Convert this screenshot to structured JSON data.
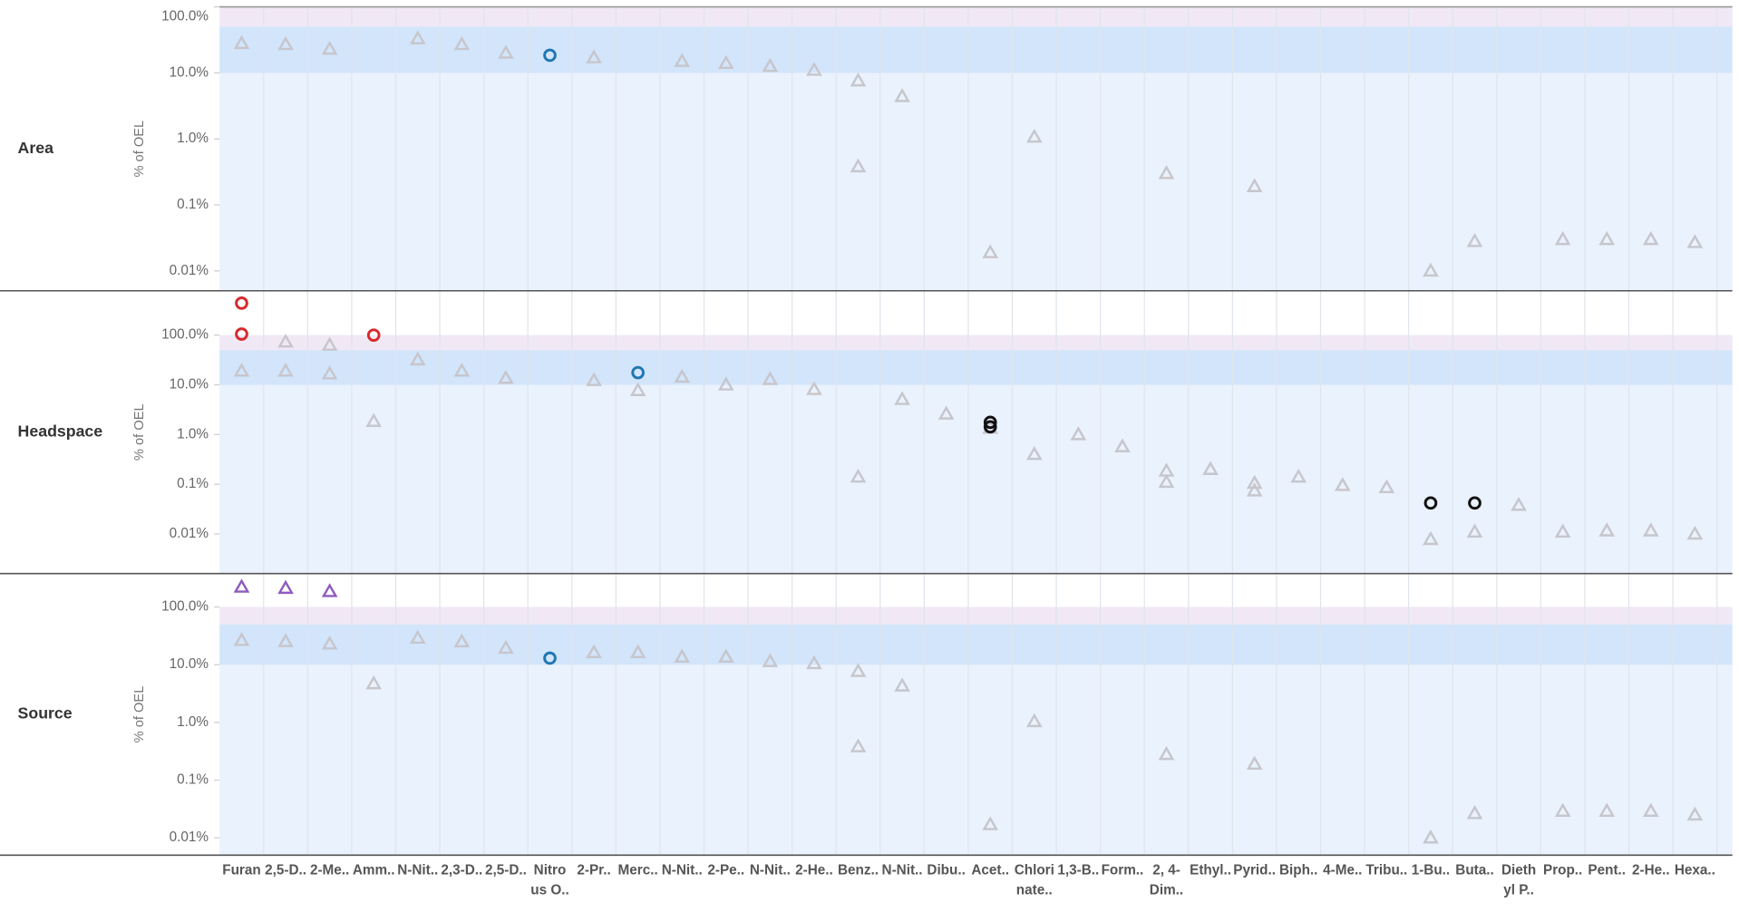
{
  "chart_data": {
    "type": "strip",
    "categories": [
      "Furan",
      "2,5-D..",
      "2-Me..",
      "Amm..",
      "N-Nit..",
      "2,3-D..",
      "2,5-D..",
      "Nitro\nus O..",
      "2-Pr..",
      "Merc..",
      "N-Nit..",
      "2-Pe..",
      "N-Nit..",
      "2-He..",
      "Benz..",
      "N-Nit..",
      "Dibu..",
      "Acet..",
      "Chlori\nnate..",
      "1,3-B..",
      "Form..",
      "2, 4-\nDim..",
      "Ethyl..",
      "Pyrid..",
      "Biph..",
      "4-Me..",
      "Tribu..",
      "1-Bu..",
      "Buta..",
      "Dieth\nyl P..",
      "Prop..",
      "Pent..",
      "2-He..",
      "Hexa.."
    ],
    "log_scale": true,
    "background": "#eaf2fd",
    "bands": [
      {
        "from": 10,
        "to": 50,
        "color": "#d3e5fb"
      },
      {
        "from": 50,
        "to": 100,
        "color": "#f1e8f5"
      }
    ],
    "panels": [
      {
        "label": "Area",
        "ylabel": "% of OEL",
        "ylim": [
          0.005,
          100
        ],
        "yticks": [
          {
            "value": 100,
            "label": "100.0%"
          },
          {
            "value": 10,
            "label": "10.0%"
          },
          {
            "value": 1,
            "label": "1.0%"
          },
          {
            "value": 0.1,
            "label": "0.1%"
          },
          {
            "value": 0.01,
            "label": "0.01%"
          }
        ],
        "marks": [
          {
            "shape": "triangle",
            "color": "#c6c6cc",
            "values": [
              28,
              27,
              23,
              null,
              33,
              27,
              20,
              null,
              17,
              null,
              15,
              14,
              12.6,
              11,
              7.6,
              4.4,
              null,
              0.019,
              1.07,
              null,
              null,
              0.3,
              null,
              0.19,
              null,
              null,
              null,
              0.01,
              0.028,
              null,
              0.03,
              0.03,
              0.03,
              0.027
            ]
          },
          {
            "shape": "triangle",
            "color": "#c6c6cc",
            "values": [
              null,
              null,
              null,
              null,
              null,
              null,
              null,
              null,
              null,
              null,
              null,
              null,
              null,
              null,
              0.38,
              null,
              null,
              null,
              null,
              null,
              null,
              null,
              null,
              null,
              null,
              null,
              null,
              null,
              null,
              null,
              null,
              null,
              null,
              null
            ]
          },
          {
            "shape": "circle",
            "color": "#1f77b0",
            "values": [
              null,
              null,
              null,
              null,
              null,
              null,
              null,
              18.5,
              null,
              null,
              null,
              null,
              null,
              null,
              null,
              null,
              null,
              null,
              null,
              null,
              null,
              null,
              null,
              null,
              null,
              null,
              null,
              null,
              null,
              null,
              null,
              null,
              null,
              null
            ]
          }
        ]
      },
      {
        "label": "Headspace",
        "ylabel": "% of OEL",
        "ylim": [
          0.0016,
          780
        ],
        "yticks": [
          {
            "value": 100,
            "label": "100.0%"
          },
          {
            "value": 10,
            "label": "10.0%"
          },
          {
            "value": 1,
            "label": "1.0%"
          },
          {
            "value": 0.1,
            "label": "0.1%"
          },
          {
            "value": 0.01,
            "label": "0.01%"
          }
        ],
        "marks": [
          {
            "shape": "triangle",
            "color": "#c6c6cc",
            "values": [
              19,
              73,
              63,
              1.85,
              32,
              19,
              13.6,
              null,
              12.3,
              7.7,
              14.3,
              10,
              12.9,
              8.1,
              0.14,
              5.1,
              2.6,
              1.35,
              0.4,
              1.0,
              0.57,
              0.185,
              0.2,
              0.105,
              0.14,
              0.095,
              0.086,
              0.0078,
              0.011,
              0.038,
              0.011,
              0.0116,
              0.0116,
              0.01
            ]
          },
          {
            "shape": "triangle",
            "color": "#c6c6cc",
            "values": [
              null,
              19,
              16.7,
              null,
              null,
              null,
              null,
              null,
              null,
              null,
              null,
              null,
              null,
              null,
              null,
              null,
              null,
              null,
              null,
              null,
              null,
              0.11,
              null,
              0.074,
              null,
              null,
              null,
              null,
              null,
              null,
              null,
              null,
              null,
              null
            ]
          },
          {
            "shape": "circle",
            "color": "#d62a2e",
            "values": [
              440,
              null,
              null,
              100,
              null,
              null,
              null,
              null,
              null,
              null,
              null,
              null,
              null,
              null,
              null,
              null,
              null,
              null,
              null,
              null,
              null,
              null,
              null,
              null,
              null,
              null,
              null,
              null,
              null,
              null,
              null,
              null,
              null,
              null
            ]
          },
          {
            "shape": "circle",
            "color": "#d62a2e",
            "values": [
              105,
              null,
              null,
              null,
              null,
              null,
              null,
              null,
              null,
              null,
              null,
              null,
              null,
              null,
              null,
              null,
              null,
              null,
              null,
              null,
              null,
              null,
              null,
              null,
              null,
              null,
              null,
              null,
              null,
              null,
              null,
              null,
              null,
              null
            ]
          },
          {
            "shape": "circle",
            "color": "#1f77b0",
            "values": [
              null,
              null,
              null,
              null,
              null,
              null,
              null,
              null,
              null,
              17.6,
              null,
              null,
              null,
              null,
              null,
              null,
              null,
              null,
              null,
              null,
              null,
              null,
              null,
              null,
              null,
              null,
              null,
              null,
              null,
              null,
              null,
              null,
              null,
              null
            ]
          },
          {
            "shape": "circle",
            "color": "#111111",
            "values": [
              null,
              null,
              null,
              null,
              null,
              null,
              null,
              null,
              null,
              null,
              null,
              null,
              null,
              null,
              null,
              null,
              null,
              1.76,
              null,
              null,
              null,
              null,
              null,
              null,
              null,
              null,
              null,
              0.042,
              0.042,
              null,
              null,
              null,
              null,
              null
            ]
          },
          {
            "shape": "circle",
            "color": "#111111",
            "values": [
              null,
              null,
              null,
              null,
              null,
              null,
              null,
              null,
              null,
              null,
              null,
              null,
              null,
              null,
              null,
              null,
              null,
              1.43,
              null,
              null,
              null,
              null,
              null,
              null,
              null,
              null,
              null,
              null,
              null,
              null,
              null,
              null,
              null,
              null
            ]
          }
        ]
      },
      {
        "label": "Source",
        "ylabel": "% of OEL",
        "ylim": [
          0.005,
          380
        ],
        "yticks": [
          {
            "value": 100,
            "label": "100.0%"
          },
          {
            "value": 10,
            "label": "10.0%"
          },
          {
            "value": 1,
            "label": "1.0%"
          },
          {
            "value": 0.1,
            "label": "0.1%"
          },
          {
            "value": 0.01,
            "label": "0.01%"
          }
        ],
        "marks": [
          {
            "shape": "triangle",
            "color": "#c6c6cc",
            "values": [
              26.5,
              25.3,
              23,
              4.7,
              29,
              25,
              19.4,
              null,
              16.3,
              16.3,
              13.6,
              13.6,
              11.4,
              10.5,
              7.7,
              4.3,
              null,
              0.017,
              1.04,
              null,
              null,
              0.28,
              null,
              0.19,
              null,
              null,
              null,
              0.01,
              0.0265,
              null,
              0.029,
              0.029,
              0.029,
              0.025
            ]
          },
          {
            "shape": "triangle",
            "color": "#c6c6cc",
            "values": [
              null,
              null,
              null,
              null,
              null,
              null,
              null,
              null,
              null,
              null,
              null,
              null,
              null,
              null,
              0.38,
              null,
              null,
              null,
              null,
              null,
              null,
              null,
              null,
              null,
              null,
              null,
              null,
              null,
              null,
              null,
              null,
              null,
              null,
              null
            ]
          },
          {
            "shape": "triangle",
            "color": "#8e5cbf",
            "values": [
              222,
              212,
              186,
              null,
              null,
              null,
              null,
              null,
              null,
              null,
              null,
              null,
              null,
              null,
              null,
              null,
              null,
              null,
              null,
              null,
              null,
              null,
              null,
              null,
              null,
              null,
              null,
              null,
              null,
              null,
              null,
              null,
              null,
              null
            ]
          },
          {
            "shape": "circle",
            "color": "#1f77b0",
            "values": [
              null,
              null,
              null,
              null,
              null,
              null,
              null,
              13,
              null,
              null,
              null,
              null,
              null,
              null,
              null,
              null,
              null,
              null,
              null,
              null,
              null,
              null,
              null,
              null,
              null,
              null,
              null,
              null,
              null,
              null,
              null,
              null,
              null,
              null
            ]
          }
        ]
      }
    ]
  }
}
